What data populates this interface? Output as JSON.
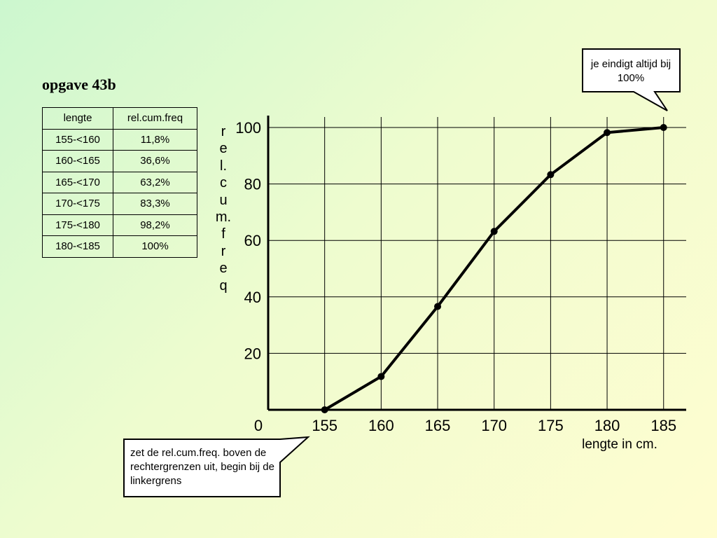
{
  "slide": {
    "title": "opgave 43b"
  },
  "table": {
    "headers": [
      "lengte",
      "rel.cum.freq"
    ],
    "rows": [
      [
        "155-<160",
        "11,8%"
      ],
      [
        "160-<165",
        "36,6%"
      ],
      [
        "165-<170",
        "63,2%"
      ],
      [
        "170-<175",
        "83,3%"
      ],
      [
        "175-<180",
        "98,2%"
      ],
      [
        "180-<185",
        "100%"
      ]
    ]
  },
  "callouts": {
    "top_right": "je eindigt altijd bij 100%",
    "bottom_left": "zet de rel.cum.freq. boven de rechtergrenzen uit, begin bij de linkergrens"
  },
  "chart_data": {
    "type": "line",
    "xlabel": "lengte in cm.",
    "ylabel_chars": [
      "r",
      "e",
      "l.",
      "c",
      "u",
      "m.",
      "f",
      "r",
      "e",
      "q"
    ],
    "x_ticks": [
      "155",
      "160",
      "165",
      "170",
      "175",
      "180",
      "185"
    ],
    "y_ticks": [
      "20",
      "40",
      "60",
      "80",
      "100"
    ],
    "origin_label": "0",
    "x": [
      155,
      160,
      165,
      170,
      175,
      180,
      185
    ],
    "y": [
      0,
      11.8,
      36.6,
      63.2,
      83.3,
      98.2,
      100
    ],
    "xlim": [
      150,
      187
    ],
    "ylim": [
      0,
      100
    ],
    "grid": true,
    "colors": {
      "line": "#000000",
      "grid": "#000000",
      "callout_border": "#000000",
      "callout_fill": "#ffffff"
    }
  }
}
